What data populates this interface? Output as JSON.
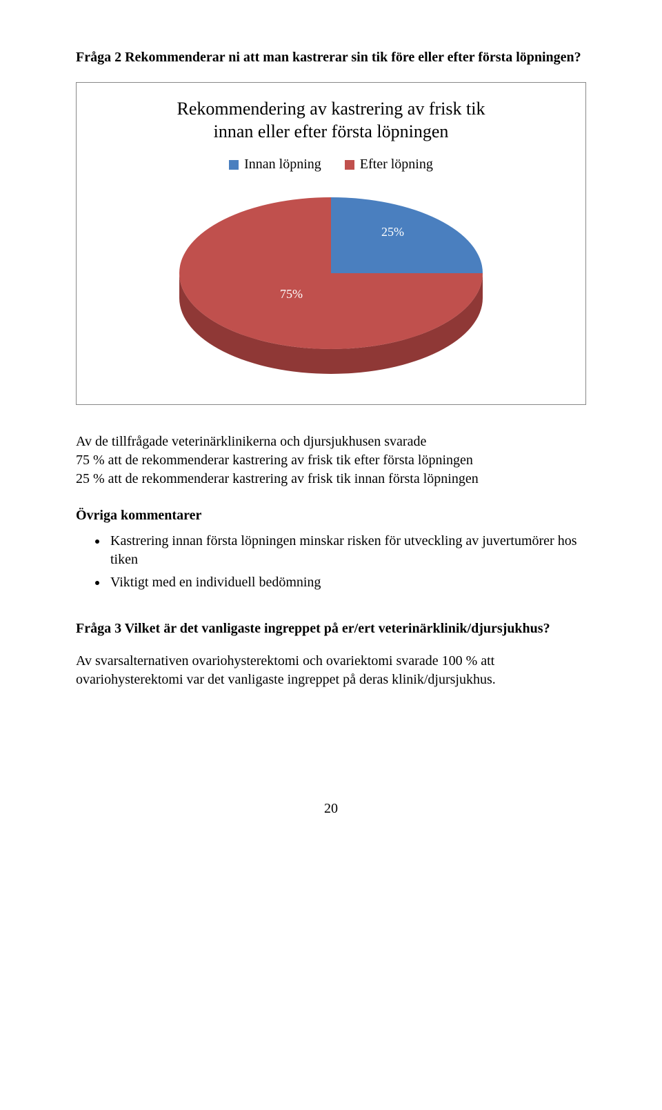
{
  "question2": "Fråga 2 Rekommenderar ni att man kastrerar sin tik före eller efter första löpningen?",
  "chart": {
    "type": "pie",
    "title_line1": "Rekommendering av kastrering av frisk tik",
    "title_line2": "innan eller efter första löpningen",
    "title_fontsize": 26,
    "legend": {
      "items": [
        {
          "label": "Innan löpning",
          "color": "#4a7fbf"
        },
        {
          "label": "Efter löpning",
          "color": "#c0504d"
        }
      ]
    },
    "slices": [
      {
        "name": "Innan löpning",
        "value": 25,
        "label": "25%",
        "color_top": "#4a7fbf",
        "color_side": "#2f5585"
      },
      {
        "name": "Efter löpning",
        "value": 75,
        "label": "75%",
        "color_top": "#c0504d",
        "color_side": "#8f3836"
      }
    ],
    "box_border_color": "#888888",
    "background_color": "#ffffff",
    "label_color": "#ffffff",
    "label_fontsize": 18
  },
  "body_paragraph": "Av de tillfrågade veterinärklinikerna och djursjukhusen svarade\n75 % att de rekommenderar kastrering av frisk tik efter första löpningen\n25 % att de rekommenderar kastrering av frisk tik innan första löpningen",
  "comments_heading": "Övriga kommentarer",
  "comments": [
    "Kastrering innan första löpningen minskar risken för utveckling av juvertumörer hos tiken",
    "Viktigt med en individuell bedömning"
  ],
  "question3_head": "Fråga 3 Vilket är det vanligaste ingreppet på er/ert veterinärklinik/djursjukhus?",
  "question3_body": "Av svarsalternativen ovariohysterektomi och ovariektomi svarade 100 % att ovariohysterektomi var det vanligaste ingreppet på deras klinik/djursjukhus.",
  "page_number": "20"
}
